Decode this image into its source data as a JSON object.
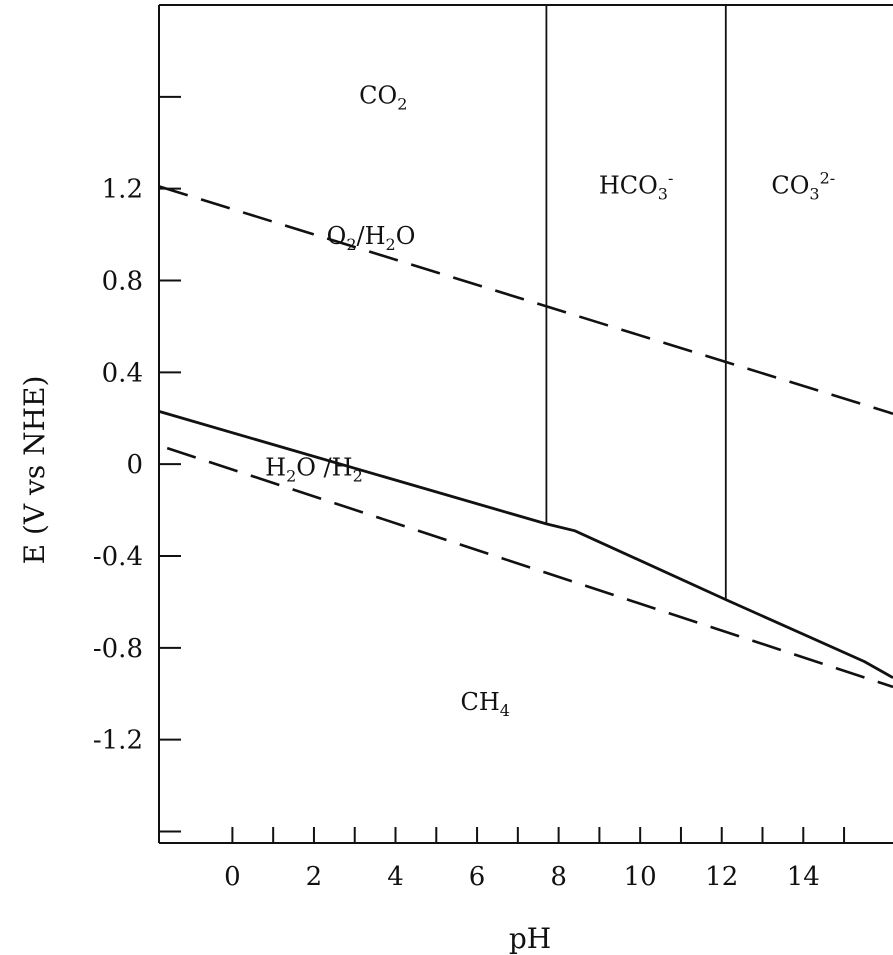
{
  "chart_data": {
    "type": "line",
    "xlabel": "pH",
    "ylabel": "E (V vs NHE)",
    "xlim": [
      -1.8,
      16.2
    ],
    "ylim": [
      -1.65,
      2.0
    ],
    "x_ticks": [
      0,
      2,
      4,
      6,
      8,
      10,
      12,
      14
    ],
    "y_ticks": [
      1.2,
      0.8,
      0.4,
      0,
      -0.4,
      -0.8,
      -1.2
    ],
    "y_tick_labels": [
      "1.2",
      "0.8",
      "0.4",
      "0",
      "-0.4",
      "-0.8",
      "-1.2"
    ],
    "grid": false,
    "series": [
      {
        "style": "dashed",
        "points": [
          [
            -1.8,
            1.21
          ],
          [
            16.2,
            0.22
          ]
        ]
      },
      {
        "style": "dashed",
        "points": [
          [
            -1.6,
            0.07
          ],
          [
            16.2,
            -0.97
          ]
        ]
      },
      {
        "style": "solid",
        "points": [
          [
            -1.8,
            0.23
          ],
          [
            7.7,
            -0.26
          ],
          [
            8.4,
            -0.29
          ],
          [
            12.1,
            -0.59
          ],
          [
            15.5,
            -0.86
          ],
          [
            16.2,
            -0.93
          ]
        ]
      },
      {
        "style": "solid",
        "points": [
          [
            7.7,
            2.0
          ],
          [
            7.7,
            -0.26
          ]
        ]
      },
      {
        "style": "solid",
        "points": [
          [
            12.1,
            2.0
          ],
          [
            12.1,
            -0.59
          ]
        ]
      }
    ],
    "annotations": [
      {
        "id": "co2",
        "base": "CO",
        "sub": "2",
        "sup": "",
        "x": 3.7,
        "y": 1.57
      },
      {
        "id": "hco3",
        "base": "HCO",
        "sub": "3",
        "sup": "-",
        "x": 9.9,
        "y": 1.18
      },
      {
        "id": "co3",
        "base": "CO",
        "sub": "3",
        "sup": "2-",
        "x": 14.0,
        "y": 1.18
      },
      {
        "id": "o2h2o",
        "base": "O",
        "sub": "2",
        "rest": "/H",
        "sub2": "2",
        "tail": "O",
        "x": 3.4,
        "y": 0.96
      },
      {
        "id": "h2oh2",
        "base": "H",
        "sub": "2",
        "rest": "O /H",
        "sub2": "2",
        "tail": "",
        "x": 2.0,
        "y": -0.05
      },
      {
        "id": "ch4",
        "base": "CH",
        "sub": "4",
        "sup": "",
        "x": 6.2,
        "y": -1.07
      }
    ]
  }
}
